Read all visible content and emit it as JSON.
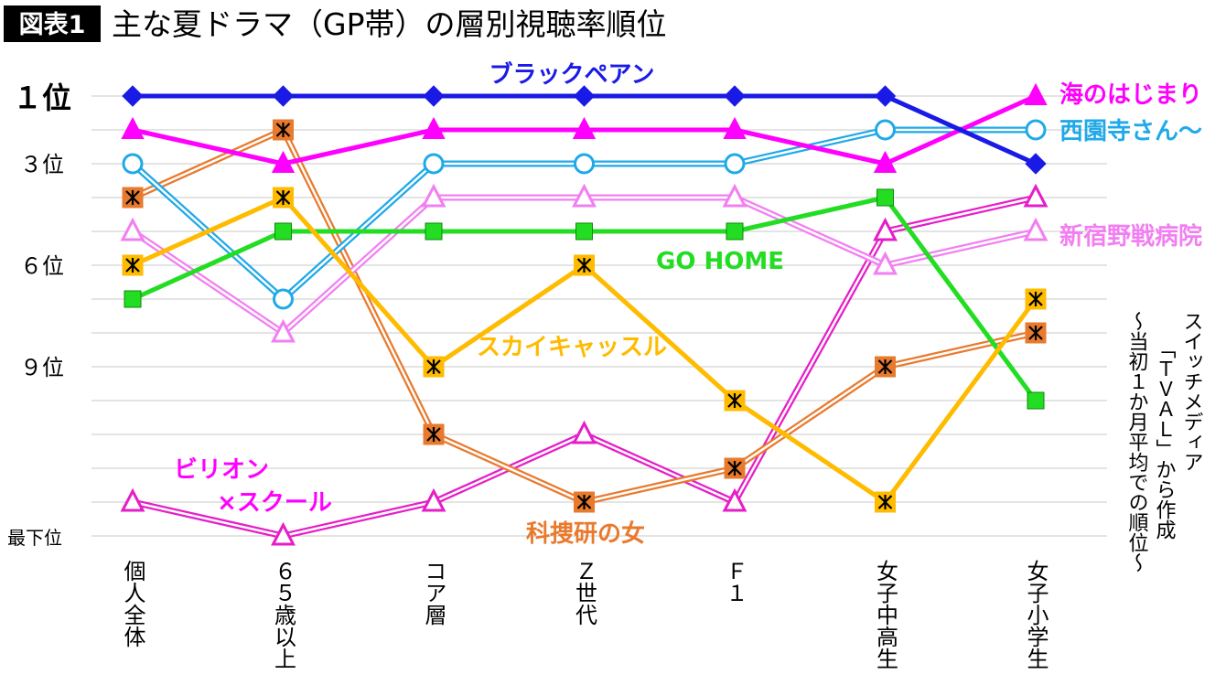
{
  "header": {
    "badge": "図表1",
    "title": "主な夏ドラマ（GP帯）の層別視聴率順位"
  },
  "source_note": {
    "line1": "スイッチメディア",
    "line2": "「ＴＶＡＬ」から作成",
    "line3": "～当初１か月平均での順位～"
  },
  "chart_data": {
    "type": "line",
    "title": "主な夏ドラマ（GP帯）の層別視聴率順位",
    "categories": [
      "個人全体",
      "６５歳以上",
      "コア層",
      "Ｚ世代",
      "Ｆ１",
      "女子中高生",
      "女子小学生"
    ],
    "y_tick_labels": [
      {
        "value": 1,
        "label": "１位"
      },
      {
        "value": 3,
        "label": "３位"
      },
      {
        "value": 6,
        "label": "６位"
      },
      {
        "value": 9,
        "label": "９位"
      },
      {
        "value": 14,
        "label": "最下位"
      }
    ],
    "ylim": [
      1,
      14
    ],
    "y_inverted": true,
    "grid": true,
    "series": [
      {
        "name": "ブラックペアン",
        "color": "#1a1ae6",
        "marker": "diamond",
        "line": "single",
        "values": [
          1,
          1,
          1,
          1,
          1,
          1,
          3
        ]
      },
      {
        "name": "海のはじまり",
        "color": "#ff00ff",
        "marker": "triangle",
        "line": "single",
        "values": [
          2,
          3,
          2,
          2,
          2,
          3,
          1
        ]
      },
      {
        "name": "西園寺さん～",
        "color": "#1fa9e8",
        "marker": "circle",
        "line": "double",
        "values": [
          3,
          7,
          3,
          3,
          3,
          2,
          2
        ]
      },
      {
        "name": "新宿野戦病院",
        "color": "#f27ff2",
        "marker": "triangle-open",
        "line": "double",
        "values": [
          5,
          8,
          4,
          4,
          4,
          6,
          5
        ]
      },
      {
        "name": "GO HOME",
        "color": "#22dd22",
        "marker": "square",
        "line": "single",
        "values": [
          7,
          5,
          5,
          5,
          5,
          4,
          10
        ]
      },
      {
        "name": "スカイキャッスル",
        "color": "#ffbb00",
        "marker": "asterisk",
        "line": "single",
        "values": [
          6,
          4,
          9,
          6,
          10,
          13,
          7
        ]
      },
      {
        "name": "科捜研の女",
        "color": "#e87a2e",
        "marker": "asterisk-square",
        "line": "double",
        "values": [
          4,
          2,
          11,
          13,
          12,
          9,
          8
        ]
      },
      {
        "name": "ビリオン×スクール",
        "color": "#e61ec8",
        "marker": "triangle-open",
        "line": "double",
        "values": [
          13,
          14,
          13,
          11,
          13,
          5,
          4
        ]
      }
    ],
    "series_labels": [
      {
        "text": "ブラックペアン",
        "color": "#1a1ae6"
      },
      {
        "text": "海のはじまり",
        "color": "#ff00ff"
      },
      {
        "text": "西園寺さん～",
        "color": "#1fa9e8"
      },
      {
        "text": "新宿野戦病院",
        "color": "#f27ff2"
      },
      {
        "text": "GO HOME",
        "color": "#22dd22"
      },
      {
        "text": "スカイキャッスル",
        "color": "#ffbb00"
      },
      {
        "text": "科捜研の女",
        "color": "#e87a2e"
      },
      {
        "text": "ビリオン",
        "color": "#ff00ff"
      },
      {
        "text": "×スクール",
        "color": "#ff00ff"
      }
    ]
  }
}
